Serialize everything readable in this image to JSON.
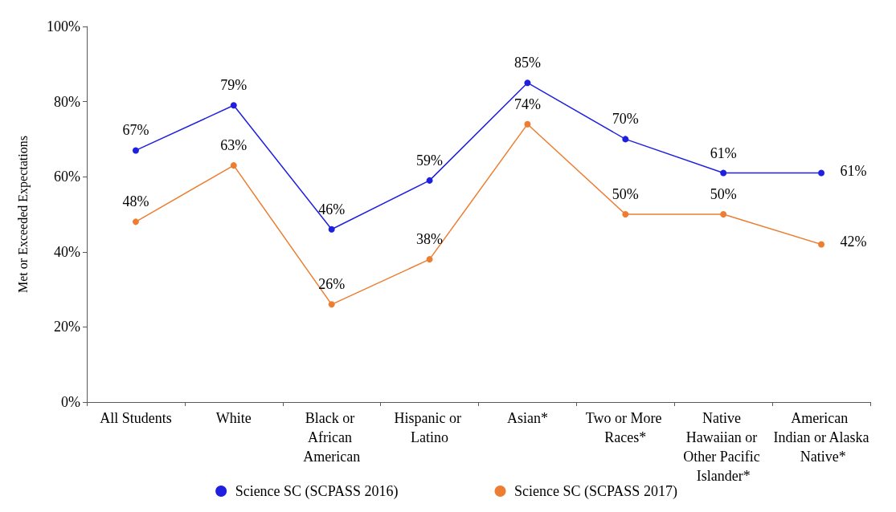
{
  "chart_data": {
    "type": "line",
    "ylabel": "Met or Exceeded Expectations",
    "categories": [
      "All Students",
      "White",
      "Black or African American",
      "Hispanic or Latino",
      "Asian*",
      "Two or More Races*",
      "Native Hawaiian or Other Pacific Islander*",
      "American Indian or Alaska Native*"
    ],
    "series": [
      {
        "name": "Science SC (SCPASS 2016)",
        "color": "#1f1fe0",
        "values": [
          67,
          79,
          46,
          59,
          85,
          70,
          61,
          61
        ],
        "value_labels": [
          "67%",
          "79%",
          "46%",
          "59%",
          "85%",
          "70%",
          "61%",
          "61%"
        ]
      },
      {
        "name": "Science SC (SCPASS 2017)",
        "color": "#ed7d31",
        "values": [
          48,
          63,
          26,
          38,
          74,
          50,
          50,
          42
        ],
        "value_labels": [
          "48%",
          "63%",
          "26%",
          "38%",
          "74%",
          "50%",
          "50%",
          "42%"
        ]
      }
    ],
    "ylim": [
      0,
      100
    ],
    "yticks": [
      {
        "value": 0,
        "label": "0%"
      },
      {
        "value": 20,
        "label": "20%"
      },
      {
        "value": 40,
        "label": "40%"
      },
      {
        "value": 60,
        "label": "60%"
      },
      {
        "value": 80,
        "label": "80%"
      },
      {
        "value": 100,
        "label": "100%"
      }
    ],
    "grid": false,
    "legend": "bottom",
    "marker": "circle",
    "line_style": "solid"
  }
}
